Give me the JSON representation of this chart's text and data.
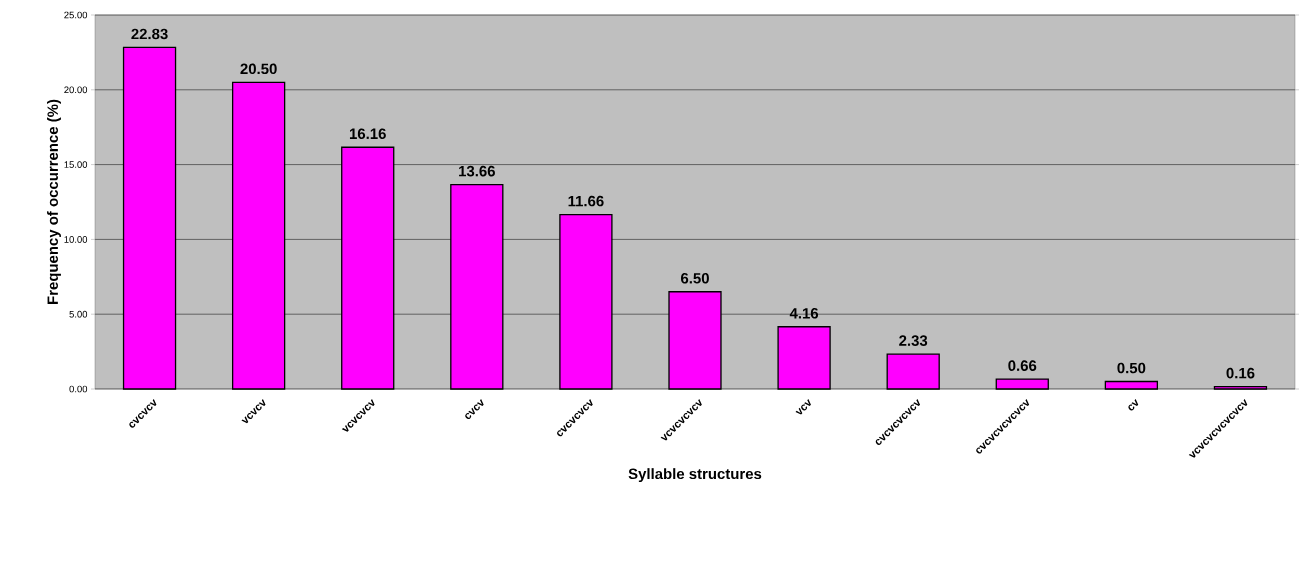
{
  "chart_data": {
    "type": "bar",
    "xlabel": "Syllable structures",
    "ylabel": "Frequency of occurrence (%)",
    "categories": [
      "cvcvcv",
      "vcvcv",
      "vcvcvcv",
      "cvcv",
      "cvcvcvcv",
      "vcvcvcvcv",
      "vcv",
      "cvcvcvcvcv",
      "cvcvcvcvcvcv",
      "cv",
      "vcvcvcvcvcvcv"
    ],
    "values": [
      22.83,
      20.5,
      16.16,
      13.66,
      11.66,
      6.5,
      4.16,
      2.33,
      0.66,
      0.5,
      0.16
    ],
    "value_labels": [
      "22.83",
      "20.50",
      "16.16",
      "13.66",
      "11.66",
      "6.50",
      "4.16",
      "2.33",
      "0.66",
      "0.50",
      "0.16"
    ],
    "color": "#ff00ff",
    "ylim": [
      0,
      25
    ],
    "yticks": [
      {
        "value": 0,
        "label": "0.00"
      },
      {
        "value": 5,
        "label": "5.00"
      },
      {
        "value": 10,
        "label": "10.00"
      },
      {
        "value": 15,
        "label": "15.00"
      },
      {
        "value": 20,
        "label": "20.00"
      },
      {
        "value": 25,
        "label": "25.00"
      }
    ],
    "grid": "y"
  }
}
